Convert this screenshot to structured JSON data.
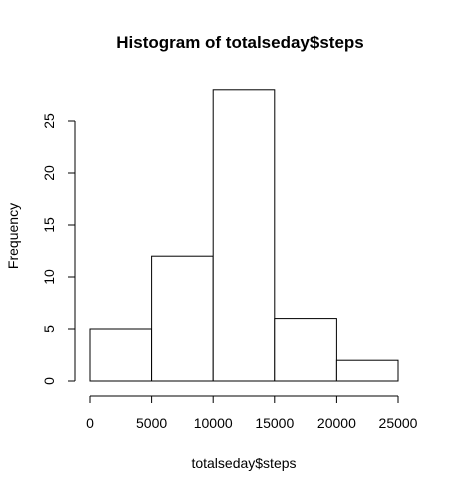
{
  "chart_data": {
    "type": "bar",
    "title": "Histogram of totalseday$steps",
    "xlabel": "totalseday$steps",
    "ylabel": "Frequency",
    "bins": [
      {
        "from": 0,
        "to": 5000,
        "count": 5
      },
      {
        "from": 5000,
        "to": 10000,
        "count": 12
      },
      {
        "from": 10000,
        "to": 15000,
        "count": 28
      },
      {
        "from": 15000,
        "to": 20000,
        "count": 6
      },
      {
        "from": 20000,
        "to": 25000,
        "count": 2
      }
    ],
    "xlim": [
      0,
      25000
    ],
    "ylim": [
      0,
      28
    ],
    "x_ticks": [
      "0",
      "5000",
      "10000",
      "15000",
      "20000",
      "25000"
    ],
    "y_ticks": [
      "0",
      "5",
      "10",
      "15",
      "20",
      "25"
    ],
    "grid": false,
    "bar_fill": "#ffffff",
    "bar_stroke": "#000000"
  }
}
